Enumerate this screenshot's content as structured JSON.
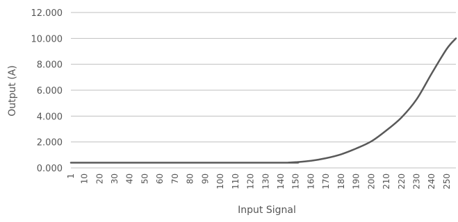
{
  "chart_data": {
    "type": "line",
    "xlabel": "Input Signal",
    "ylabel": "Output (A)",
    "ylim": [
      0,
      12
    ],
    "y_ticks": [
      "0.000",
      "2.000",
      "4.000",
      "6.000",
      "8.000",
      "10.000",
      "12.000"
    ],
    "x_tick_labels": [
      "1",
      "10",
      "20",
      "30",
      "40",
      "50",
      "60",
      "70",
      "80",
      "90",
      "100",
      "110",
      "120",
      "130",
      "140",
      "150",
      "160",
      "170",
      "180",
      "190",
      "200",
      "210",
      "220",
      "230",
      "240",
      "250"
    ],
    "xlim": [
      1,
      256
    ],
    "grid": "horizontal",
    "legend": "none",
    "line_color": "#595959",
    "series": [
      {
        "x": [
          1,
          140,
          145,
          150,
          160,
          170,
          180,
          190,
          200,
          210,
          220,
          230,
          240,
          250,
          256
        ],
        "values": [
          0.4,
          0.4,
          0.41,
          0.44,
          0.55,
          0.75,
          1.05,
          1.5,
          2.05,
          2.9,
          3.9,
          5.3,
          7.3,
          9.2,
          10.0
        ]
      }
    ]
  }
}
